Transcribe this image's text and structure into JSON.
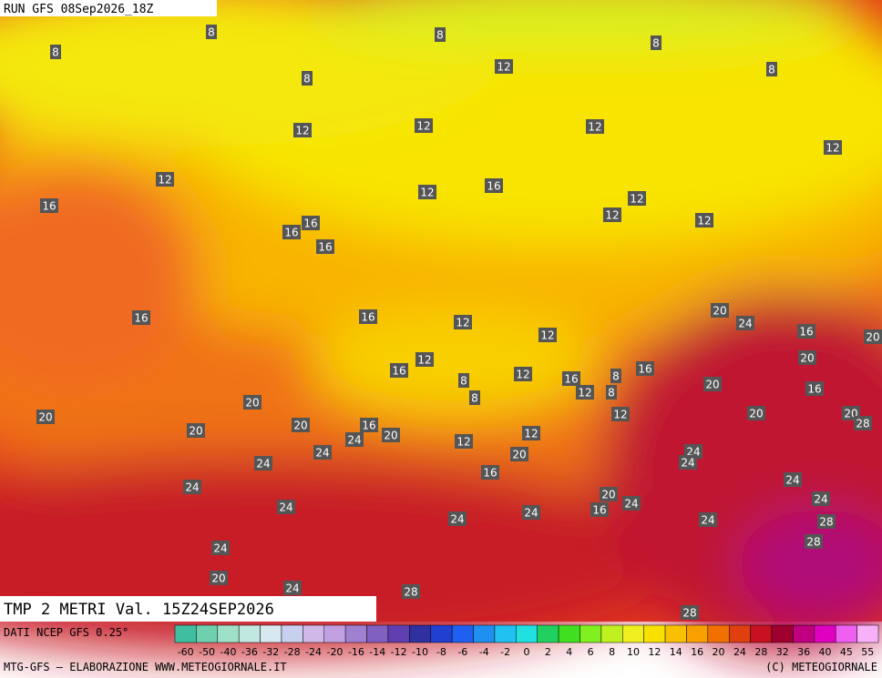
{
  "header": {
    "run": "RUN GFS 08Sep2026_18Z"
  },
  "map": {
    "labels": [
      8,
      8,
      8,
      8,
      8,
      8,
      12,
      12,
      12,
      12,
      12,
      12,
      12,
      12,
      12,
      12,
      16,
      16,
      16,
      16,
      16,
      16,
      16,
      12,
      12,
      20,
      24,
      16,
      20,
      20,
      16,
      12,
      8,
      12,
      16,
      8,
      16,
      20,
      8,
      12,
      8,
      16,
      20,
      20,
      12,
      20,
      20,
      28,
      20,
      20,
      16,
      20,
      24,
      12,
      12,
      24,
      24,
      20,
      24,
      24,
      16,
      24,
      24,
      20,
      24,
      24,
      24,
      16,
      24,
      24,
      24,
      28,
      28,
      24,
      20,
      24,
      28,
      28
    ]
  },
  "footer": {
    "title": "TMP 2 METRI Val. 15Z24SEP2026",
    "source": "DATI NCEP GFS 0.25°",
    "credit": "MTG-GFS — ELABORAZIONE WWW.METEOGIORNALE.IT",
    "copyright": "(C) METEOGIORNALE"
  },
  "legend": {
    "ticks": [
      -60,
      -50,
      -40,
      -36,
      -32,
      -28,
      -24,
      -20,
      -16,
      -14,
      -12,
      -10,
      -8,
      -6,
      -4,
      -2,
      0,
      2,
      4,
      6,
      8,
      10,
      12,
      14,
      16,
      20,
      24,
      28,
      32,
      36,
      40,
      45,
      55
    ],
    "colors": [
      "#3fbf9f",
      "#6fd0b0",
      "#9fe0c8",
      "#c0e8e0",
      "#d8e8f0",
      "#c8d0f0",
      "#d0b8e8",
      "#c0a0e0",
      "#a080d0",
      "#8060c0",
      "#6040b0",
      "#3030a0",
      "#2040d0",
      "#2060f0",
      "#2090f0",
      "#20c0f0",
      "#20e0e0",
      "#20d060",
      "#40e020",
      "#80f020",
      "#c0f020",
      "#f0f020",
      "#f8e000",
      "#f8c000",
      "#f8a000",
      "#f07000",
      "#e04010",
      "#c81020",
      "#a00030",
      "#c00080",
      "#e000c0",
      "#f060f0",
      "#f8b0f8"
    ]
  }
}
